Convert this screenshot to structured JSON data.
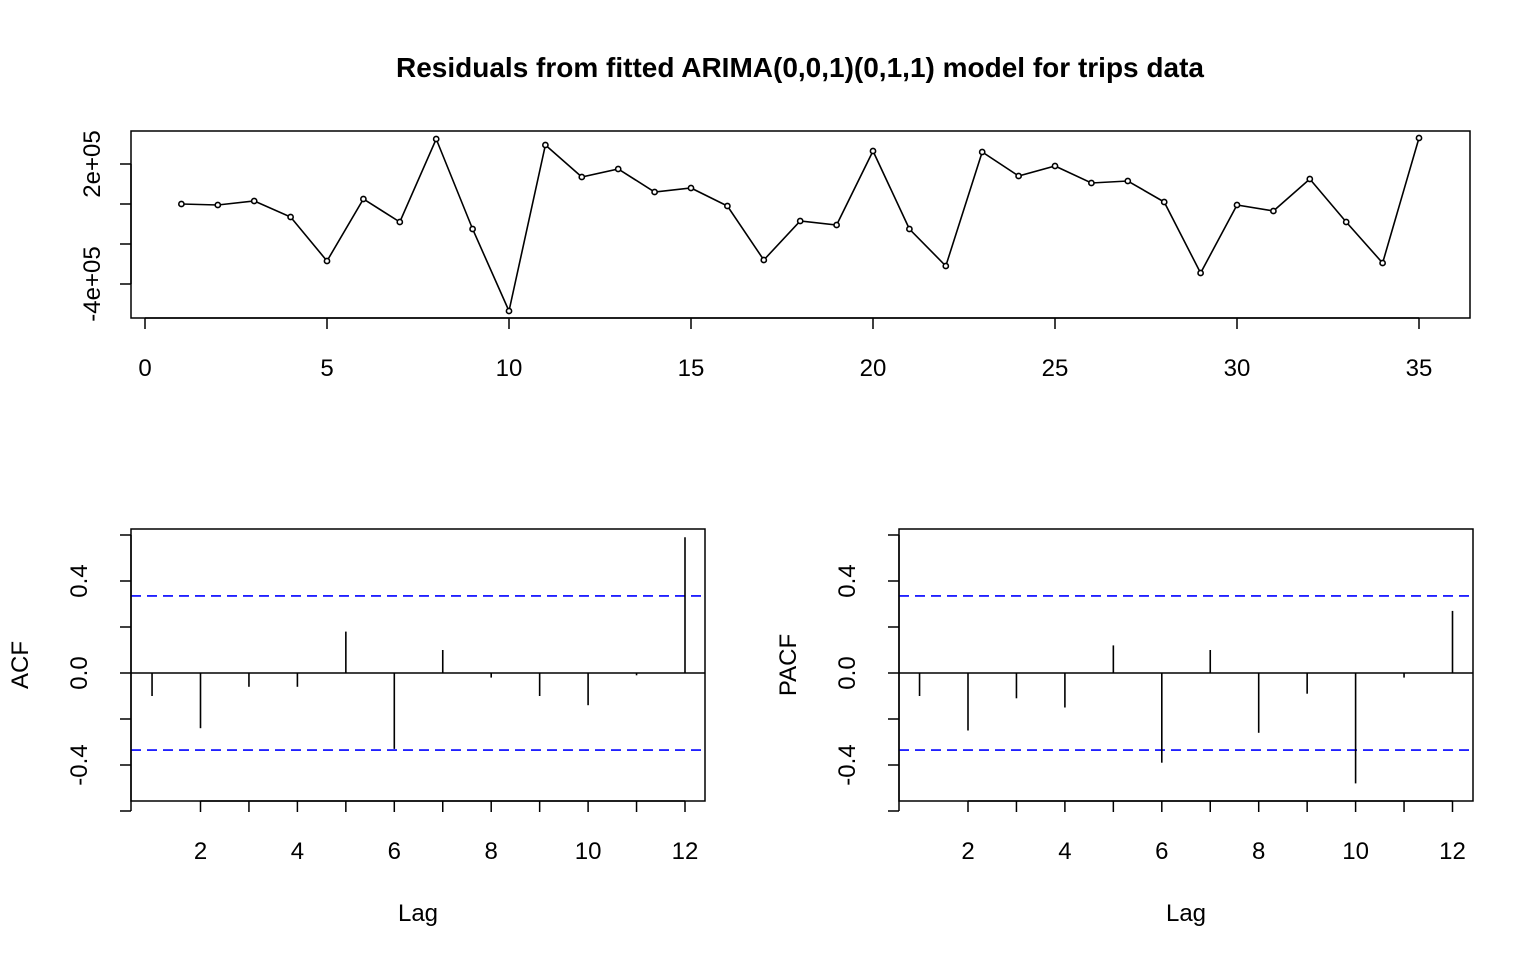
{
  "title": "Residuals from fitted ARIMA(0,0,1)(0,1,1) model for trips data",
  "chart_data": [
    {
      "type": "line",
      "name": "residuals",
      "x": [
        1,
        2,
        3,
        4,
        5,
        6,
        7,
        8,
        9,
        10,
        11,
        12,
        13,
        14,
        15,
        16,
        17,
        18,
        19,
        20,
        21,
        22,
        23,
        24,
        25,
        26,
        27,
        28,
        29,
        30,
        31,
        32,
        33,
        34,
        35
      ],
      "values": [
        0,
        -5000,
        15000,
        -65000,
        -285000,
        25000,
        -90000,
        325000,
        -125000,
        -535000,
        295000,
        135000,
        175000,
        60000,
        80000,
        -10000,
        -280000,
        -85000,
        -105000,
        265000,
        -125000,
        -310000,
        260000,
        140000,
        190000,
        105000,
        115000,
        10000,
        -345000,
        -5000,
        -35000,
        125000,
        -90000,
        -295000,
        330000
      ],
      "xlim": [
        0,
        36
      ],
      "ylim": [
        -530000,
        330000
      ],
      "xticks": [
        0,
        5,
        10,
        15,
        20,
        25,
        30,
        35
      ],
      "yticks": [
        -400000,
        -200000,
        0,
        200000
      ],
      "ytick_labels": [
        "-4e+05",
        "",
        "",
        "2e+05"
      ],
      "points": true
    },
    {
      "type": "bar",
      "name": "ACF",
      "xlabel": "Lag",
      "ylabel": "ACF",
      "lags": [
        1,
        2,
        3,
        4,
        5,
        6,
        7,
        8,
        9,
        10,
        11,
        12
      ],
      "values": [
        -0.1,
        -0.24,
        -0.06,
        -0.06,
        0.18,
        -0.33,
        0.1,
        -0.02,
        -0.1,
        -0.14,
        -0.01,
        0.59
      ],
      "ci": 0.335,
      "ylim": [
        -0.55,
        0.62
      ],
      "xticks": [
        2,
        4,
        6,
        8,
        10,
        12
      ],
      "yticks": [
        -0.4,
        0.0,
        0.4
      ],
      "ytick_labels": [
        "-0.4",
        "0.0",
        "0.4"
      ]
    },
    {
      "type": "bar",
      "name": "PACF",
      "xlabel": "Lag",
      "ylabel": "PACF",
      "lags": [
        1,
        2,
        3,
        4,
        5,
        6,
        7,
        8,
        9,
        10,
        11,
        12
      ],
      "values": [
        -0.1,
        -0.25,
        -0.11,
        -0.15,
        0.12,
        -0.39,
        0.1,
        -0.26,
        -0.09,
        -0.48,
        -0.02,
        0.27
      ],
      "ci": 0.335,
      "ylim": [
        -0.55,
        0.62
      ],
      "xticks": [
        2,
        4,
        6,
        8,
        10,
        12
      ],
      "yticks": [
        -0.4,
        0.0,
        0.4
      ],
      "ytick_labels": [
        "-0.4",
        "0.0",
        "0.4"
      ]
    }
  ],
  "colors": {
    "line": "#000000",
    "ci": "#0000ff",
    "background": "#ffffff"
  }
}
